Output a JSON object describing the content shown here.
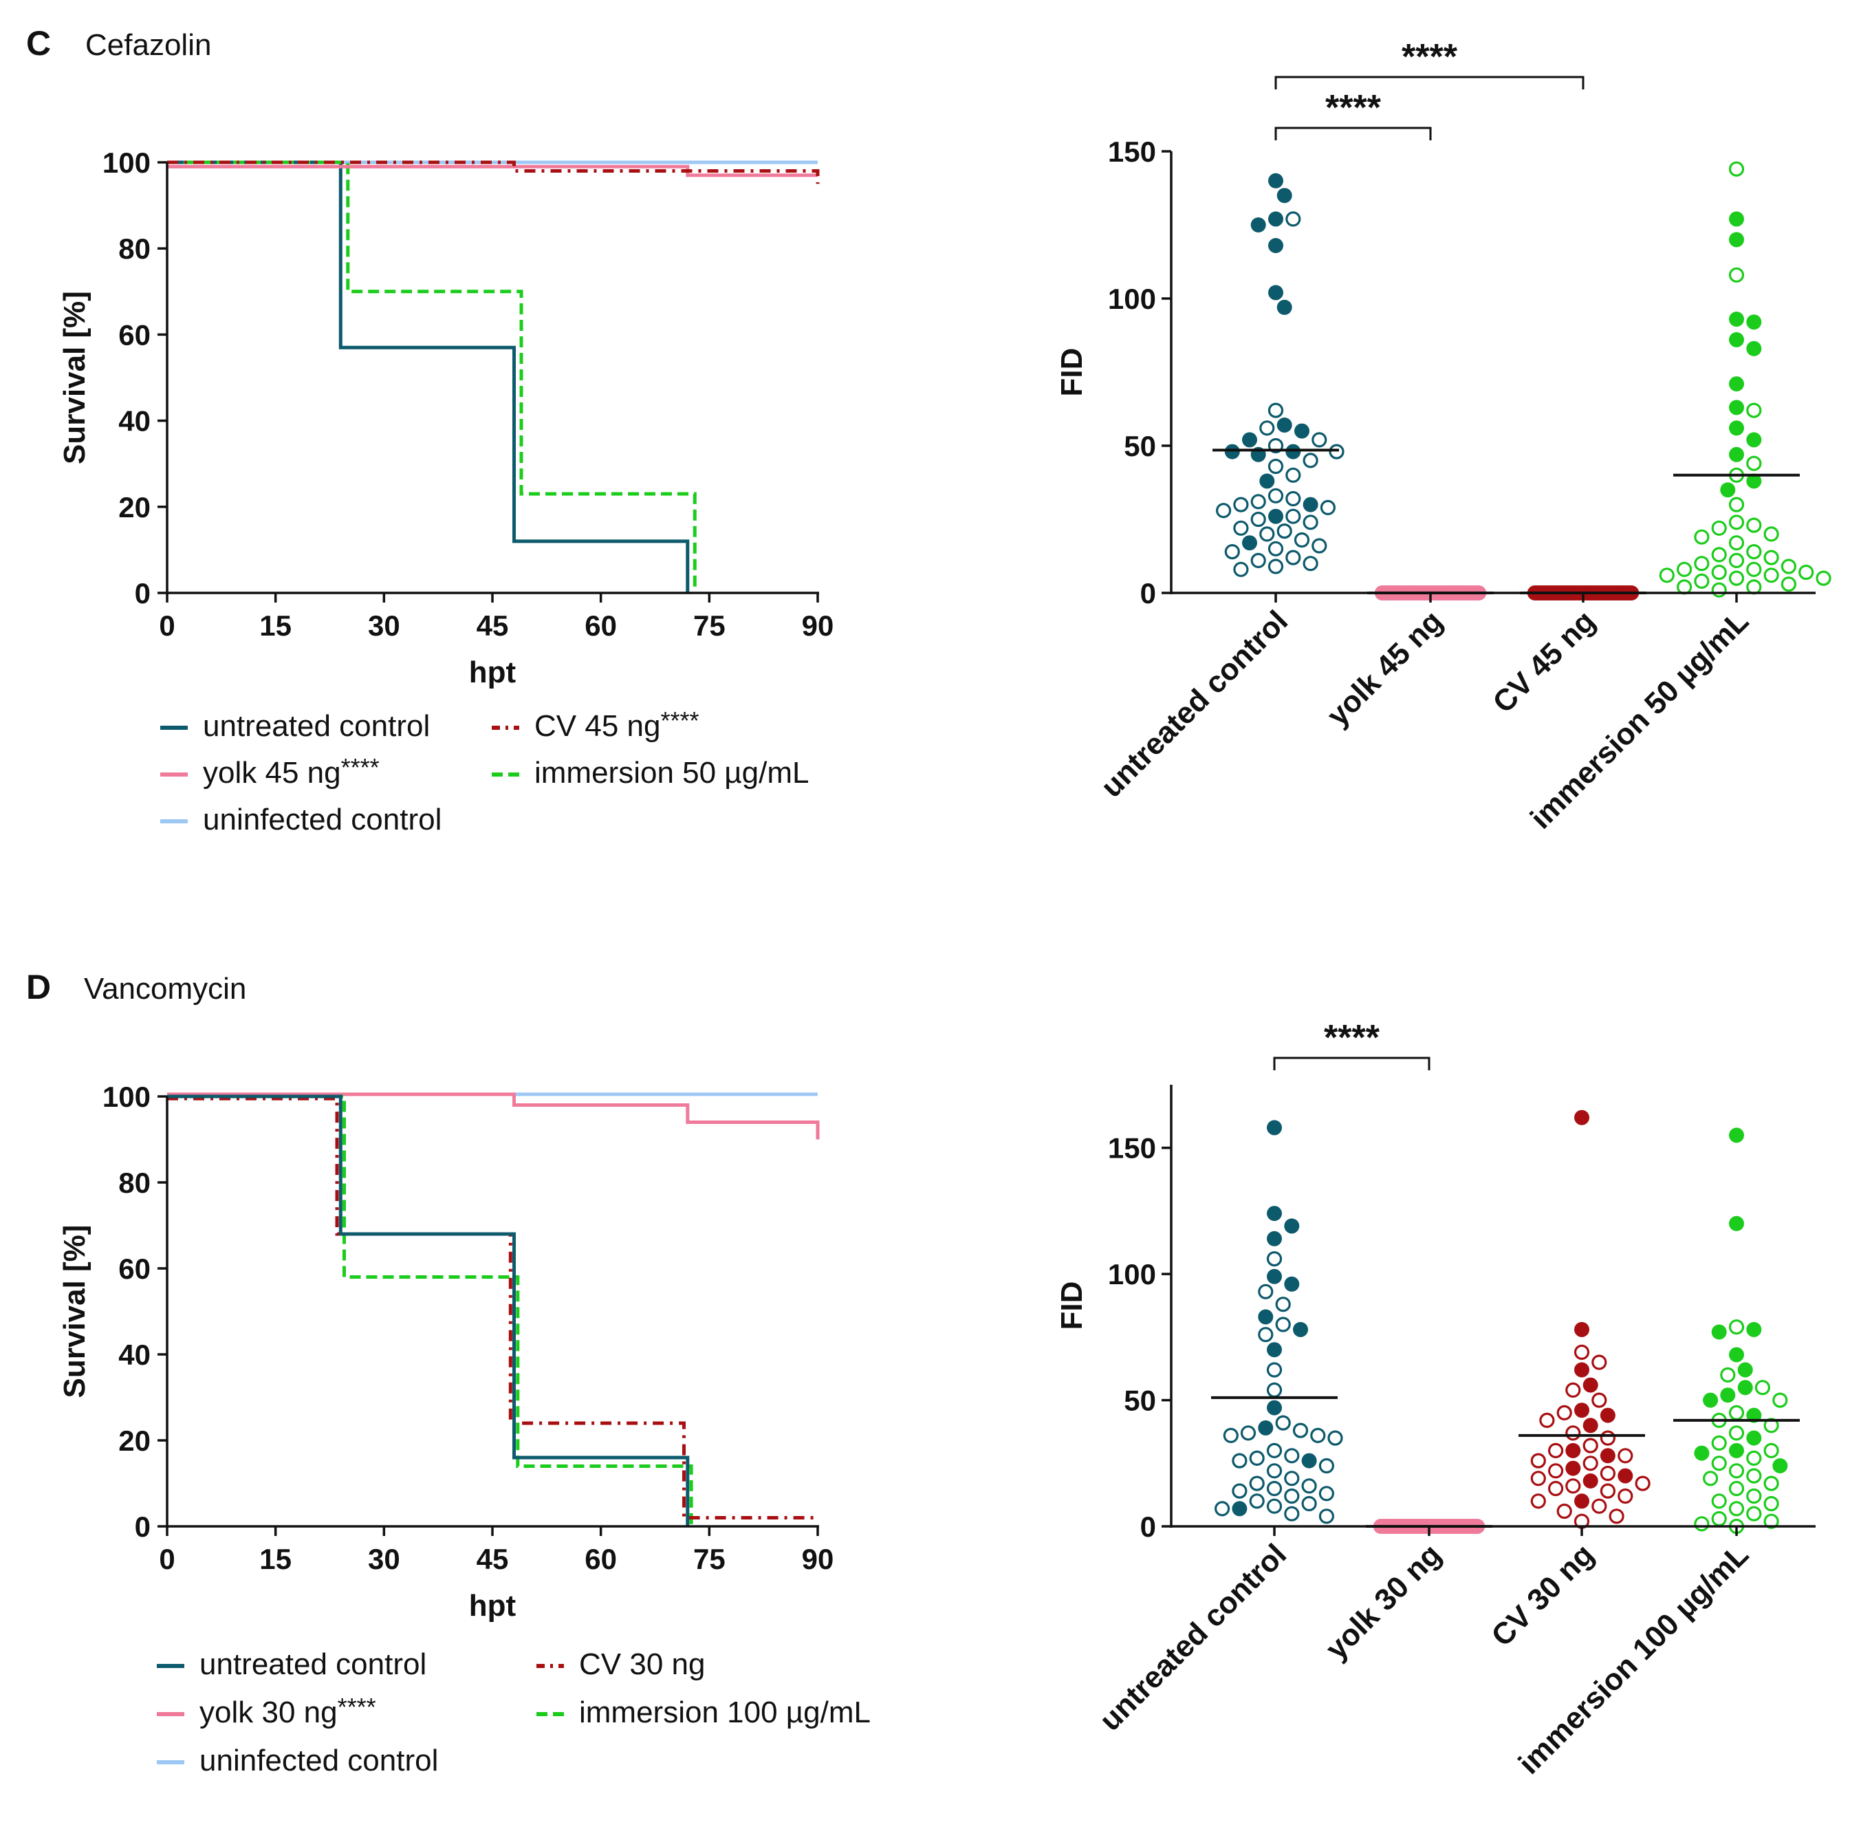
{
  "colors": {
    "untreated": "#0d5a6c",
    "yolk": "#f07a9a",
    "cv": "#a80f12",
    "immersion": "#1ccc1c",
    "uninfected": "#9ec8f4",
    "axis": "#111111"
  },
  "panels": [
    {
      "letter": "C",
      "title": "Cefazolin",
      "survival_key": "survC",
      "fid_key": "fidC",
      "legend": [
        {
          "label": "untreated control",
          "sig": "",
          "color": "untreated",
          "dash": "solid"
        },
        {
          "label": "CV 45 ng",
          "sig": "****",
          "color": "cv",
          "dash": "dashdot"
        },
        {
          "label": "yolk 45 ng",
          "sig": "****",
          "color": "yolk",
          "dash": "solid"
        },
        {
          "label": "immersion 50 µg/mL",
          "sig": "",
          "color": "immersion",
          "dash": "dash"
        },
        {
          "label": "uninfected control",
          "sig": "",
          "color": "uninfected",
          "dash": "solid"
        }
      ]
    },
    {
      "letter": "D",
      "title": "Vancomycin",
      "survival_key": "survD",
      "fid_key": "fidD",
      "legend": [
        {
          "label": "untreated control",
          "sig": "",
          "color": "untreated",
          "dash": "solid"
        },
        {
          "label": "CV 30 ng",
          "sig": "",
          "color": "cv",
          "dash": "dashdot"
        },
        {
          "label": "yolk 30 ng",
          "sig": "****",
          "color": "yolk",
          "dash": "solid"
        },
        {
          "label": "immersion 100 µg/mL",
          "sig": "",
          "color": "immersion",
          "dash": "dash"
        },
        {
          "label": "uninfected control",
          "sig": "",
          "color": "uninfected",
          "dash": "solid"
        }
      ]
    }
  ],
  "chart_data": [
    {
      "id": "survC",
      "type": "line",
      "subtype": "kaplan-meier",
      "title": "Cefazolin",
      "xlabel": "hpt",
      "ylabel": "Survival [%]",
      "xlim": [
        0,
        90
      ],
      "ylim": [
        0,
        100
      ],
      "xticks": [
        0,
        15,
        30,
        45,
        60,
        75,
        90
      ],
      "yticks": [
        0,
        20,
        40,
        60,
        80,
        100
      ],
      "series": [
        {
          "name": "uninfected control",
          "color": "uninfected",
          "dash": "solid",
          "x": [
            0,
            90
          ],
          "y": [
            100,
            100
          ]
        },
        {
          "name": "untreated control",
          "color": "untreated",
          "dash": "solid",
          "x": [
            0,
            24,
            24,
            48,
            48,
            72,
            72
          ],
          "y": [
            100,
            100,
            57,
            57,
            12,
            12,
            0
          ]
        },
        {
          "name": "immersion 50 µg/mL",
          "color": "immersion",
          "dash": "dash",
          "x": [
            0,
            25,
            25,
            49,
            49,
            73,
            73
          ],
          "y": [
            100,
            100,
            70,
            70,
            23,
            23,
            0
          ]
        },
        {
          "name": "yolk 45 ng ****",
          "color": "yolk",
          "dash": "solid",
          "x": [
            0,
            72,
            72,
            90
          ],
          "y": [
            99,
            99,
            97,
            97
          ]
        },
        {
          "name": "CV 45 ng ****",
          "color": "cv",
          "dash": "dashdot",
          "x": [
            0,
            48,
            48,
            90,
            90
          ],
          "y": [
            100,
            100,
            98,
            98,
            95
          ]
        }
      ]
    },
    {
      "id": "fidC",
      "type": "scatter",
      "subtype": "dot-plot",
      "ylabel": "FID",
      "ylim": [
        0,
        150
      ],
      "yticks": [
        0,
        50,
        100,
        150
      ],
      "groups": [
        {
          "name": "untreated control",
          "color": "untreated",
          "mean": 48.5,
          "filled": [
            140,
            135,
            127,
            125,
            118,
            102,
            97,
            57,
            55,
            52,
            48,
            48,
            47,
            38,
            30,
            26,
            17
          ],
          "open": [
            127,
            62,
            56,
            52,
            50,
            48,
            45,
            43,
            40,
            33,
            32,
            31,
            30,
            29,
            28,
            26,
            25,
            24,
            22,
            21,
            20,
            18,
            16,
            15,
            14,
            12,
            11,
            10,
            9,
            8
          ]
        },
        {
          "name": "yolk 45 ng",
          "color": "yolk",
          "mean": 0,
          "filled": [
            0,
            0,
            0,
            0,
            0,
            0,
            0,
            0,
            0,
            0,
            0,
            0,
            0,
            0,
            0,
            0,
            0,
            0,
            0,
            0,
            0,
            0,
            0,
            0,
            0,
            0,
            0,
            0,
            0,
            0,
            0,
            0,
            0,
            0,
            0,
            0,
            0,
            0,
            0,
            0
          ],
          "open": []
        },
        {
          "name": "CV 45 ng",
          "color": "cv",
          "mean": 0,
          "filled": [
            0,
            0,
            0,
            0,
            0,
            0,
            0,
            0,
            0,
            0,
            0,
            0,
            0,
            0,
            0,
            0,
            0,
            0,
            0,
            0,
            0,
            0,
            0,
            0,
            0,
            0,
            0,
            0,
            0,
            0,
            0,
            0,
            0,
            0,
            0,
            0,
            0,
            0,
            0,
            0
          ],
          "open": []
        },
        {
          "name": "immersion 50 µg/mL",
          "color": "immersion",
          "mean": 40,
          "filled": [
            127,
            120,
            93,
            92,
            86,
            83,
            71,
            63,
            56,
            52,
            47,
            38,
            35
          ],
          "open": [
            144,
            108,
            62,
            44,
            40,
            30,
            24,
            23,
            22,
            20,
            19,
            17,
            14,
            13,
            12,
            11,
            10,
            9,
            8,
            8,
            7,
            7,
            6,
            6,
            5,
            5,
            4,
            3,
            2,
            2,
            1
          ]
        }
      ],
      "significance": [
        {
          "from": 0,
          "to": 2,
          "label": "****",
          "level": 2
        },
        {
          "from": 0,
          "to": 1,
          "label": "****",
          "level": 1
        }
      ]
    },
    {
      "id": "survD",
      "type": "line",
      "subtype": "kaplan-meier",
      "title": "Vancomycin",
      "xlabel": "hpt",
      "ylabel": "Survival [%]",
      "xlim": [
        0,
        90
      ],
      "ylim": [
        0,
        100
      ],
      "xticks": [
        0,
        15,
        30,
        45,
        60,
        75,
        90
      ],
      "yticks": [
        0,
        20,
        40,
        60,
        80,
        100
      ],
      "series": [
        {
          "name": "uninfected control",
          "color": "uninfected",
          "dash": "solid",
          "x": [
            48,
            90
          ],
          "y": [
            100.5,
            100.5
          ]
        },
        {
          "name": "yolk 30 ng ****",
          "color": "yolk",
          "dash": "solid",
          "x": [
            0,
            48,
            48,
            72,
            72,
            90,
            90
          ],
          "y": [
            100.5,
            100.5,
            98,
            98,
            94,
            94,
            90
          ]
        },
        {
          "name": "immersion 100 µg/mL",
          "color": "immersion",
          "dash": "dash",
          "x": [
            0,
            24.5,
            24.5,
            48.5,
            48.5,
            72.5,
            72.5
          ],
          "y": [
            100,
            100,
            58,
            58,
            14,
            14,
            0
          ]
        },
        {
          "name": "CV 30 ng",
          "color": "cv",
          "dash": "dashdot",
          "x": [
            0,
            23.5,
            23.5,
            47.5,
            47.5,
            71.5,
            71.5,
            90
          ],
          "y": [
            99.5,
            99.5,
            68,
            68,
            24,
            24,
            2,
            2
          ]
        },
        {
          "name": "untreated control",
          "color": "untreated",
          "dash": "solid",
          "x": [
            0,
            24,
            24,
            48,
            48,
            72,
            72
          ],
          "y": [
            100,
            100,
            68,
            68,
            16,
            16,
            0
          ]
        }
      ]
    },
    {
      "id": "fidD",
      "type": "scatter",
      "subtype": "dot-plot",
      "ylabel": "FID",
      "ylim": [
        0,
        175
      ],
      "yticks": [
        0,
        50,
        100,
        150
      ],
      "groups": [
        {
          "name": "untreated control",
          "color": "untreated",
          "mean": 51,
          "filled": [
            158,
            124,
            119,
            114,
            99,
            96,
            83,
            78,
            70,
            47,
            39,
            26,
            7
          ],
          "open": [
            106,
            93,
            88,
            80,
            76,
            62,
            54,
            41,
            38,
            37,
            36,
            36,
            35,
            30,
            28,
            27,
            26,
            24,
            22,
            19,
            17,
            16,
            15,
            14,
            13,
            12,
            10,
            9,
            8,
            7,
            5,
            4
          ]
        },
        {
          "name": "yolk 30 ng",
          "color": "yolk",
          "mean": 0,
          "filled": [
            0,
            0,
            0,
            0,
            0,
            0,
            0,
            0,
            0,
            0,
            0,
            0,
            0,
            0,
            0,
            0,
            0,
            0,
            0,
            0,
            0,
            0,
            0,
            0,
            0,
            0,
            0,
            0,
            0,
            0,
            0,
            0,
            0,
            0,
            0,
            0,
            0,
            0,
            0,
            0
          ],
          "open": []
        },
        {
          "name": "CV 30 ng",
          "color": "cv",
          "mean": 36,
          "filled": [
            162,
            78,
            62,
            56,
            46,
            44,
            40,
            30,
            28,
            23,
            20,
            18,
            10
          ],
          "open": [
            69,
            65,
            54,
            50,
            45,
            42,
            37,
            35,
            32,
            30,
            28,
            26,
            25,
            22,
            21,
            19,
            17,
            16,
            15,
            14,
            12,
            10,
            8,
            6,
            4,
            2
          ]
        },
        {
          "name": "immersion 100 µg/mL",
          "color": "immersion",
          "mean": 42,
          "filled": [
            155,
            120,
            78,
            77,
            68,
            62,
            55,
            52,
            50,
            44,
            35,
            30,
            29,
            24
          ],
          "open": [
            79,
            60,
            55,
            50,
            45,
            42,
            40,
            37,
            33,
            30,
            27,
            25,
            22,
            20,
            19,
            17,
            15,
            12,
            10,
            9,
            7,
            5,
            3,
            2,
            1,
            0
          ]
        }
      ],
      "significance": [
        {
          "from": 0,
          "to": 1,
          "label": "****",
          "level": 1
        }
      ]
    }
  ]
}
